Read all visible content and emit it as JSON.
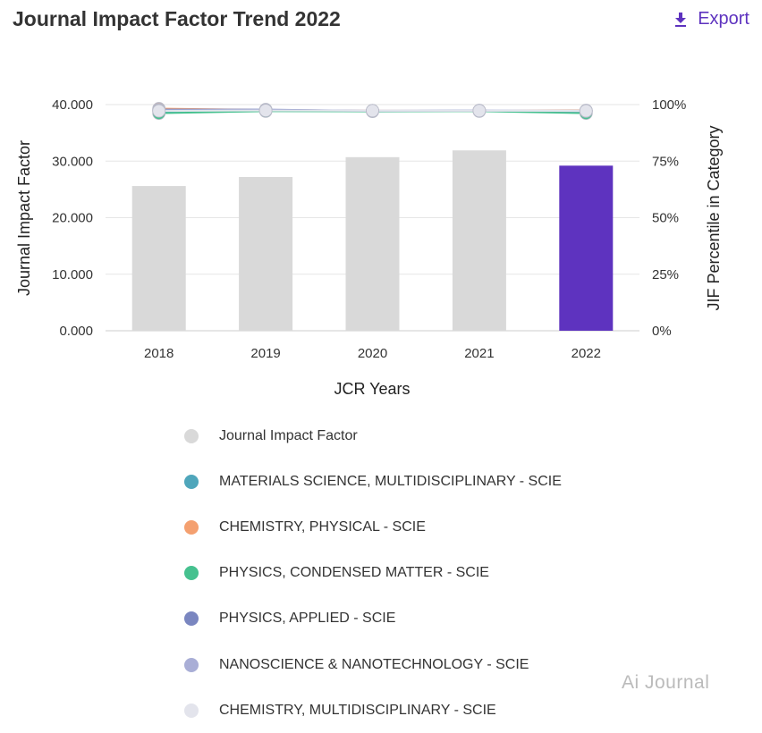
{
  "header": {
    "title": "Journal Impact Factor Trend 2022",
    "export_label": "Export",
    "export_icon": "download-icon"
  },
  "watermark": "Ai Journal",
  "chart_data": {
    "type": "bar+line",
    "xlabel": "JCR Years",
    "ylabel": "Journal Impact Factor",
    "y2label": "JIF Percentile in Category",
    "categories": [
      "2018",
      "2019",
      "2020",
      "2021",
      "2022"
    ],
    "ylim": [
      0,
      40
    ],
    "yticks": [
      "0.000",
      "10.000",
      "20.000",
      "30.000",
      "40.000"
    ],
    "y2lim": [
      0,
      100
    ],
    "y2ticks": [
      "0%",
      "25%",
      "50%",
      "75%",
      "100%"
    ],
    "grid": true,
    "legend_position": "bottom",
    "bars": {
      "name": "Journal Impact Factor",
      "values": [
        25.6,
        27.2,
        30.7,
        31.9,
        29.2
      ],
      "color": "#d9d9d9",
      "highlight_color": "#5e33bf",
      "highlight_index": 4
    },
    "series": [
      {
        "name": "MATERIALS SCIENCE, MULTIDISCIPLINARY - SCIE",
        "values": [
          97.0,
          97.5,
          97.2,
          97.3,
          96.8
        ],
        "color": "#4fa6bb"
      },
      {
        "name": "CHEMISTRY, PHYSICAL - SCIE",
        "values": [
          98.2,
          97.6,
          97.3,
          97.2,
          97.4
        ],
        "color": "#f4a070"
      },
      {
        "name": "PHYSICS, CONDENSED MATTER - SCIE",
        "values": [
          96.2,
          97.1,
          97.0,
          97.1,
          96.2
        ],
        "color": "#46c18f"
      },
      {
        "name": "PHYSICS, APPLIED - SCIE",
        "values": [
          97.8,
          97.8,
          97.2,
          97.3,
          97.3
        ],
        "color": "#7a86c0"
      },
      {
        "name": "NANOSCIENCE & NANOTECHNOLOGY - SCIE",
        "values": [
          97.5,
          97.6,
          97.3,
          97.4,
          97.1
        ],
        "color": "#a9aed6"
      },
      {
        "name": "CHEMISTRY, MULTIDISCIPLINARY - SCIE",
        "values": [
          97.2,
          97.4,
          97.3,
          97.3,
          97.2
        ],
        "color": "#e3e4ec"
      }
    ]
  }
}
